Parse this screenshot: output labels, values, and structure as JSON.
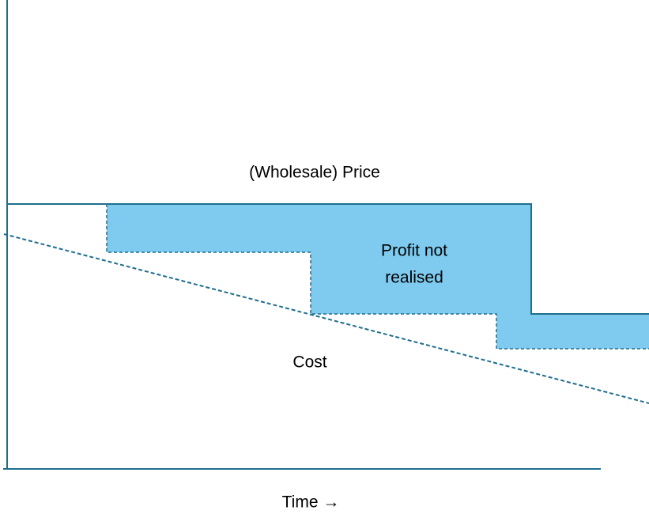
{
  "labels": {
    "price": "(Wholesale) Price",
    "profit": [
      "Profit not",
      "realised"
    ],
    "cost": "Cost",
    "time_axis": "Time →"
  }
}
